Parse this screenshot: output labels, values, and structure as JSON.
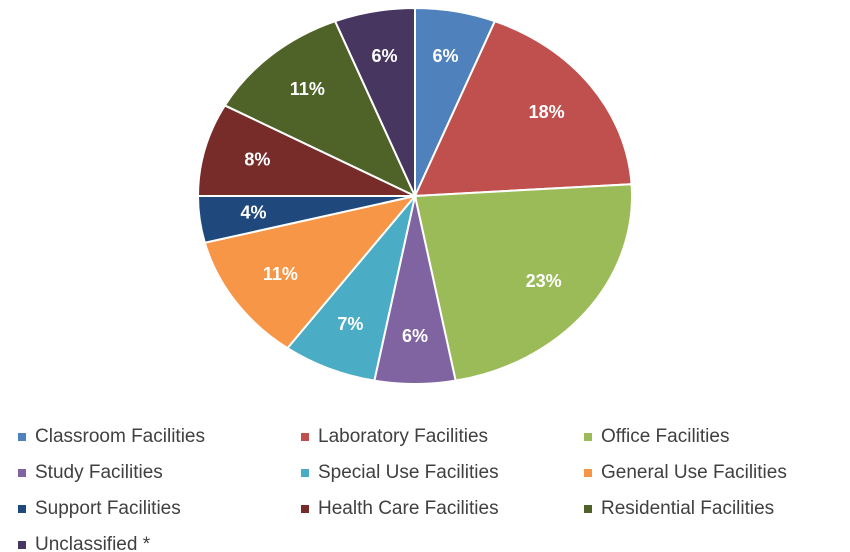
{
  "chart_data": {
    "type": "pie",
    "categories": [
      "Classroom Facilities",
      "Laboratory Facilities",
      "Office Facilities",
      "Study Facilities",
      "Special Use Facilities",
      "General Use Facilities",
      "Support Facilities",
      "Health Care Facilities",
      "Residential Facilities",
      "Unclassified *"
    ],
    "values": [
      6,
      18,
      23,
      6,
      7,
      11,
      4,
      8,
      11,
      6
    ],
    "value_labels": [
      "6%",
      "18%",
      "23%",
      "6%",
      "7%",
      "11%",
      "4%",
      "8%",
      "11%",
      "6%"
    ],
    "colors": [
      "#4f81bd",
      "#c0504d",
      "#9bbb59",
      "#8064a2",
      "#4bacc6",
      "#f79646",
      "#1f497d",
      "#772c2a",
      "#4f6228",
      "#463660"
    ],
    "legend": "bottom"
  }
}
